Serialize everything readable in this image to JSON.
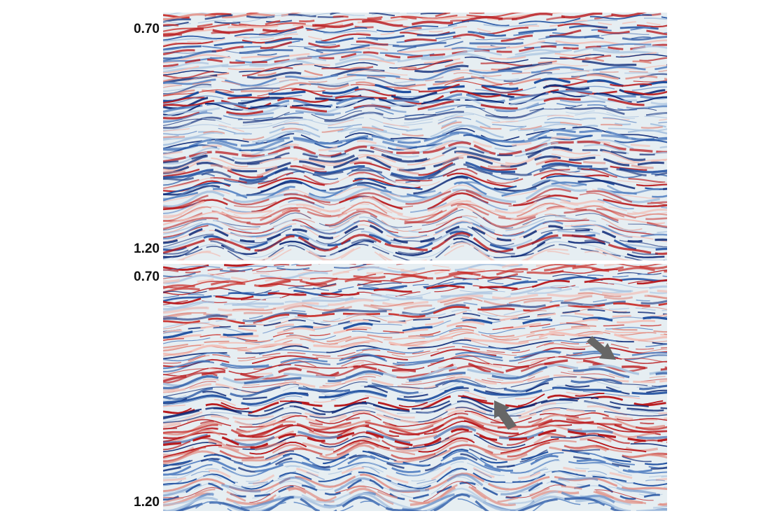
{
  "panels": [
    {
      "yticks": [
        "0.70",
        "1.20"
      ]
    },
    {
      "yticks": [
        "0.70",
        "1.20"
      ]
    }
  ]
}
